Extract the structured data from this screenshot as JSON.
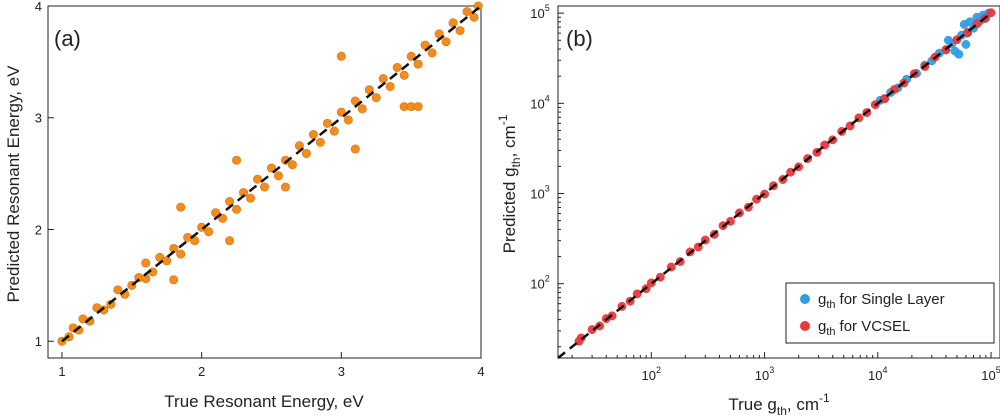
{
  "chart_data": [
    {
      "type": "scatter",
      "panel_label": "(a)",
      "xlabel": "True Resonant Energy, eV",
      "ylabel": "Predicted Resonant Energy, eV",
      "xlim": [
        0.9,
        4.0
      ],
      "ylim": [
        0.85,
        4.0
      ],
      "xticks": [
        1,
        2,
        3,
        4
      ],
      "yticks": [
        1,
        2,
        3,
        4
      ],
      "grid": false,
      "reference_line": "y = x (dashed black)",
      "series": [
        {
          "color": "#f28c1e",
          "points": [
            [
              1.0,
              1.0
            ],
            [
              1.05,
              1.04
            ],
            [
              1.08,
              1.12
            ],
            [
              1.12,
              1.1
            ],
            [
              1.15,
              1.2
            ],
            [
              1.2,
              1.18
            ],
            [
              1.25,
              1.3
            ],
            [
              1.3,
              1.28
            ],
            [
              1.35,
              1.33
            ],
            [
              1.4,
              1.46
            ],
            [
              1.45,
              1.42
            ],
            [
              1.5,
              1.5
            ],
            [
              1.55,
              1.57
            ],
            [
              1.6,
              1.56
            ],
            [
              1.6,
              1.7
            ],
            [
              1.65,
              1.62
            ],
            [
              1.7,
              1.75
            ],
            [
              1.75,
              1.72
            ],
            [
              1.8,
              1.83
            ],
            [
              1.85,
              1.78
            ],
            [
              1.85,
              2.2
            ],
            [
              1.9,
              1.93
            ],
            [
              1.95,
              1.9
            ],
            [
              2.0,
              2.02
            ],
            [
              2.05,
              1.98
            ],
            [
              2.1,
              2.15
            ],
            [
              2.15,
              2.1
            ],
            [
              2.2,
              2.25
            ],
            [
              2.25,
              2.18
            ],
            [
              2.3,
              2.33
            ],
            [
              2.35,
              2.28
            ],
            [
              2.4,
              2.45
            ],
            [
              2.45,
              2.38
            ],
            [
              2.5,
              2.55
            ],
            [
              2.55,
              2.48
            ],
            [
              2.6,
              2.62
            ],
            [
              2.65,
              2.58
            ],
            [
              2.7,
              2.75
            ],
            [
              2.75,
              2.68
            ],
            [
              2.8,
              2.85
            ],
            [
              2.85,
              2.78
            ],
            [
              2.9,
              2.95
            ],
            [
              2.95,
              2.88
            ],
            [
              3.0,
              3.05
            ],
            [
              3.05,
              2.98
            ],
            [
              3.1,
              3.15
            ],
            [
              3.15,
              3.08
            ],
            [
              3.2,
              3.25
            ],
            [
              3.25,
              3.18
            ],
            [
              3.3,
              3.35
            ],
            [
              3.35,
              3.28
            ],
            [
              3.4,
              3.45
            ],
            [
              3.45,
              3.38
            ],
            [
              3.5,
              3.55
            ],
            [
              3.55,
              3.48
            ],
            [
              3.6,
              3.65
            ],
            [
              3.65,
              3.58
            ],
            [
              3.7,
              3.75
            ],
            [
              3.75,
              3.68
            ],
            [
              3.8,
              3.85
            ],
            [
              3.85,
              3.78
            ],
            [
              3.9,
              3.95
            ],
            [
              3.95,
              3.9
            ],
            [
              3.98,
              4.0
            ],
            [
              1.8,
              1.55
            ],
            [
              2.25,
              2.62
            ],
            [
              2.6,
              2.38
            ],
            [
              3.1,
              2.72
            ],
            [
              3.45,
              3.1
            ],
            [
              3.5,
              3.1
            ],
            [
              3.55,
              3.1
            ],
            [
              3.0,
              3.55
            ],
            [
              2.2,
              1.9
            ]
          ]
        }
      ]
    },
    {
      "type": "scatter",
      "panel_label": "(b)",
      "xlabel": "True g_th, cm^-1",
      "ylabel": "Predicted g_th, cm^-1",
      "xscale": "log",
      "yscale": "log",
      "xlim": [
        15,
        120000
      ],
      "ylim": [
        15,
        120000
      ],
      "xticks": [
        100,
        1000,
        10000,
        100000
      ],
      "yticks": [
        100,
        1000,
        10000,
        100000
      ],
      "grid": false,
      "legend_position": "bottom-right",
      "reference_line": "y = x (dashed black)",
      "series": [
        {
          "name": "g_th for Single Layer",
          "legend_label": "for Single Layer",
          "color": "#2f9ee3",
          "points": [
            [
              10500,
              10800
            ],
            [
              11500,
              11200
            ],
            [
              13000,
              13200
            ],
            [
              15000,
              14800
            ],
            [
              18000,
              18500
            ],
            [
              22000,
              21500
            ],
            [
              26000,
              26500
            ],
            [
              30000,
              29500
            ],
            [
              35000,
              36000
            ],
            [
              40000,
              39000
            ],
            [
              45000,
              46000
            ],
            [
              48000,
              38000
            ],
            [
              52000,
              35000
            ],
            [
              55000,
              57000
            ],
            [
              58000,
              75000
            ],
            [
              62000,
              60000
            ],
            [
              65000,
              80000
            ],
            [
              70000,
              68000
            ],
            [
              75000,
              90000
            ],
            [
              80000,
              82000
            ],
            [
              85000,
              95000
            ],
            [
              90000,
              88000
            ],
            [
              95000,
              100000
            ],
            [
              42000,
              50000
            ],
            [
              60000,
              45000
            ]
          ]
        },
        {
          "name": "g_th for VCSEL",
          "legend_label": "for VCSEL",
          "color": "#e8393b",
          "points": [
            [
              23,
              23
            ],
            [
              24,
              25
            ],
            [
              30,
              31
            ],
            [
              35,
              34
            ],
            [
              40,
              41
            ],
            [
              45,
              44
            ],
            [
              55,
              56
            ],
            [
              65,
              64
            ],
            [
              75,
              77
            ],
            [
              90,
              88
            ],
            [
              100,
              102
            ],
            [
              120,
              118
            ],
            [
              150,
              153
            ],
            [
              180,
              176
            ],
            [
              220,
              225
            ],
            [
              260,
              255
            ],
            [
              300,
              305
            ],
            [
              360,
              352
            ],
            [
              430,
              440
            ],
            [
              500,
              492
            ],
            [
              600,
              610
            ],
            [
              720,
              705
            ],
            [
              850,
              865
            ],
            [
              1000,
              985
            ],
            [
              1200,
              1220
            ],
            [
              1450,
              1430
            ],
            [
              1700,
              1725
            ],
            [
              2000,
              1975
            ],
            [
              2400,
              2440
            ],
            [
              2900,
              2860
            ],
            [
              3400,
              3450
            ],
            [
              4000,
              3940
            ],
            [
              4800,
              4880
            ],
            [
              5700,
              5620
            ],
            [
              6800,
              6900
            ],
            [
              8000,
              7900
            ],
            [
              9500,
              9650
            ],
            [
              11500,
              11300
            ],
            [
              14000,
              14200
            ],
            [
              17000,
              16800
            ],
            [
              21000,
              21300
            ],
            [
              26000,
              25600
            ],
            [
              32000,
              32500
            ],
            [
              40000,
              39400
            ],
            [
              50000,
              50800
            ],
            [
              62000,
              61000
            ],
            [
              75000,
              76000
            ],
            [
              88000,
              87000
            ],
            [
              100000,
              101000
            ]
          ]
        }
      ]
    }
  ],
  "labels": {
    "a": {
      "panel": "(a)",
      "xlabel": "True Resonant Energy, eV",
      "ylabel": "Predicted Resonant Energy, eV",
      "xticks": [
        "1",
        "2",
        "3",
        "4"
      ],
      "yticks": [
        "1",
        "2",
        "3",
        "4"
      ]
    },
    "b": {
      "panel": "(b)",
      "xlabel_pre": "True g",
      "xlabel_sub": "th",
      "xlabel_post": ", cm",
      "xlabel_sup": "-1",
      "ylabel_pre": "Predicted g",
      "ylabel_sub": "th",
      "ylabel_post": ", cm",
      "ylabel_sup": "-1",
      "tick_base": "10",
      "xtick_exps": [
        "2",
        "3",
        "4",
        "5"
      ],
      "ytick_exps": [
        "2",
        "3",
        "4",
        "5"
      ],
      "legend_g": "g",
      "legend_sub": "th"
    }
  },
  "colors": {
    "orange": "#f28c1e",
    "blue": "#2f9ee3",
    "red": "#e8393b",
    "axis": "#222222",
    "refline": "#111111"
  }
}
